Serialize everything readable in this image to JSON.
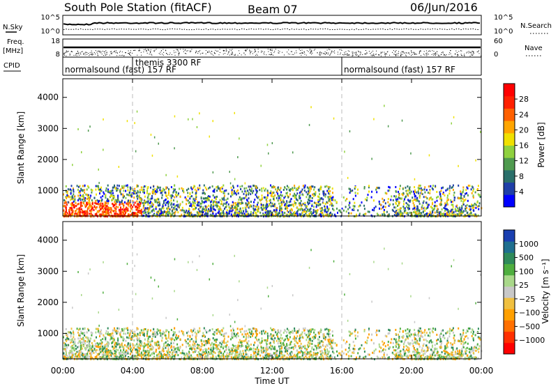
{
  "header": {
    "station": "South Pole Station (fitACF)",
    "beam": "Beam 07",
    "date": "06/Jun/2016"
  },
  "strip_nsky": {
    "label": "N.Sky",
    "ticks_left": [
      "10^5",
      "10^0"
    ],
    "ticks_right": [
      "10^5",
      "10^0"
    ],
    "right_label": "N.Search"
  },
  "strip_freq": {
    "label_top": "Freq.",
    "label_unit": "[MHz]",
    "ticks_left": [
      "18",
      "8"
    ],
    "ticks_right": [
      "60",
      "0"
    ],
    "right_label": "Nave"
  },
  "cpid": {
    "label": "CPID",
    "segments": [
      {
        "text": "normalsound (fast) 157 RF",
        "start_hour": 0
      },
      {
        "text": "themis 3300 RF",
        "start_hour": 4
      },
      {
        "text": "normalsound (fast) 157 RF",
        "start_hour": 16
      }
    ]
  },
  "x_axis": {
    "label": "Time UT",
    "ticks": [
      "00:00",
      "04:00",
      "08:00",
      "12:00",
      "16:00",
      "20:00",
      "00:00"
    ]
  },
  "colorbars": {
    "power": {
      "label": "Power [dB]",
      "ticks": [
        "4",
        "8",
        "12",
        "16",
        "20",
        "24",
        "28"
      ],
      "colors": [
        "#0000ff",
        "#1f3fa8",
        "#2a6f6a",
        "#4f9a4f",
        "#8fd13f",
        "#f0e000",
        "#ffa500",
        "#ff6000",
        "#ff2000",
        "#ff0000"
      ]
    },
    "velocity": {
      "label": "Velocity [m s⁻¹]",
      "ticks": [
        "1000",
        "500",
        "100",
        "25",
        "−25",
        "−100",
        "−500",
        "−1000"
      ],
      "colors": [
        "#1a3fb0",
        "#1f6f8f",
        "#2f8a5a",
        "#4fae3f",
        "#a9d88a",
        "#c8c8c8",
        "#f0c040",
        "#ffa000",
        "#ff7000",
        "#ff3000",
        "#ff0000"
      ]
    }
  },
  "chart_data": [
    {
      "type": "heatmap",
      "title": "",
      "xlabel": "Time UT",
      "ylabel": "Slant Range [km]",
      "xlim": [
        0,
        24
      ],
      "ylim": [
        180,
        4600
      ],
      "yticks": [
        1000,
        2000,
        3000,
        4000
      ],
      "colorbar_label": "Power [dB]",
      "colorbar_range": [
        0,
        32
      ],
      "scatter_ranges_km": [
        [
          180,
          1200
        ]
      ],
      "dominant_hours": [
        [
          0,
          6.5
        ],
        [
          7,
          15.5
        ],
        [
          19,
          23.8
        ]
      ]
    },
    {
      "type": "heatmap",
      "title": "",
      "xlabel": "Time UT",
      "ylabel": "Slant Range [km]",
      "xlim": [
        0,
        24
      ],
      "ylim": [
        180,
        4600
      ],
      "yticks": [
        1000,
        2000,
        3000,
        4000
      ],
      "colorbar_label": "Velocity [m s⁻¹]",
      "colorbar_range": [
        -1000,
        1000
      ],
      "scatter_ranges_km": [
        [
          180,
          1200
        ]
      ]
    }
  ]
}
